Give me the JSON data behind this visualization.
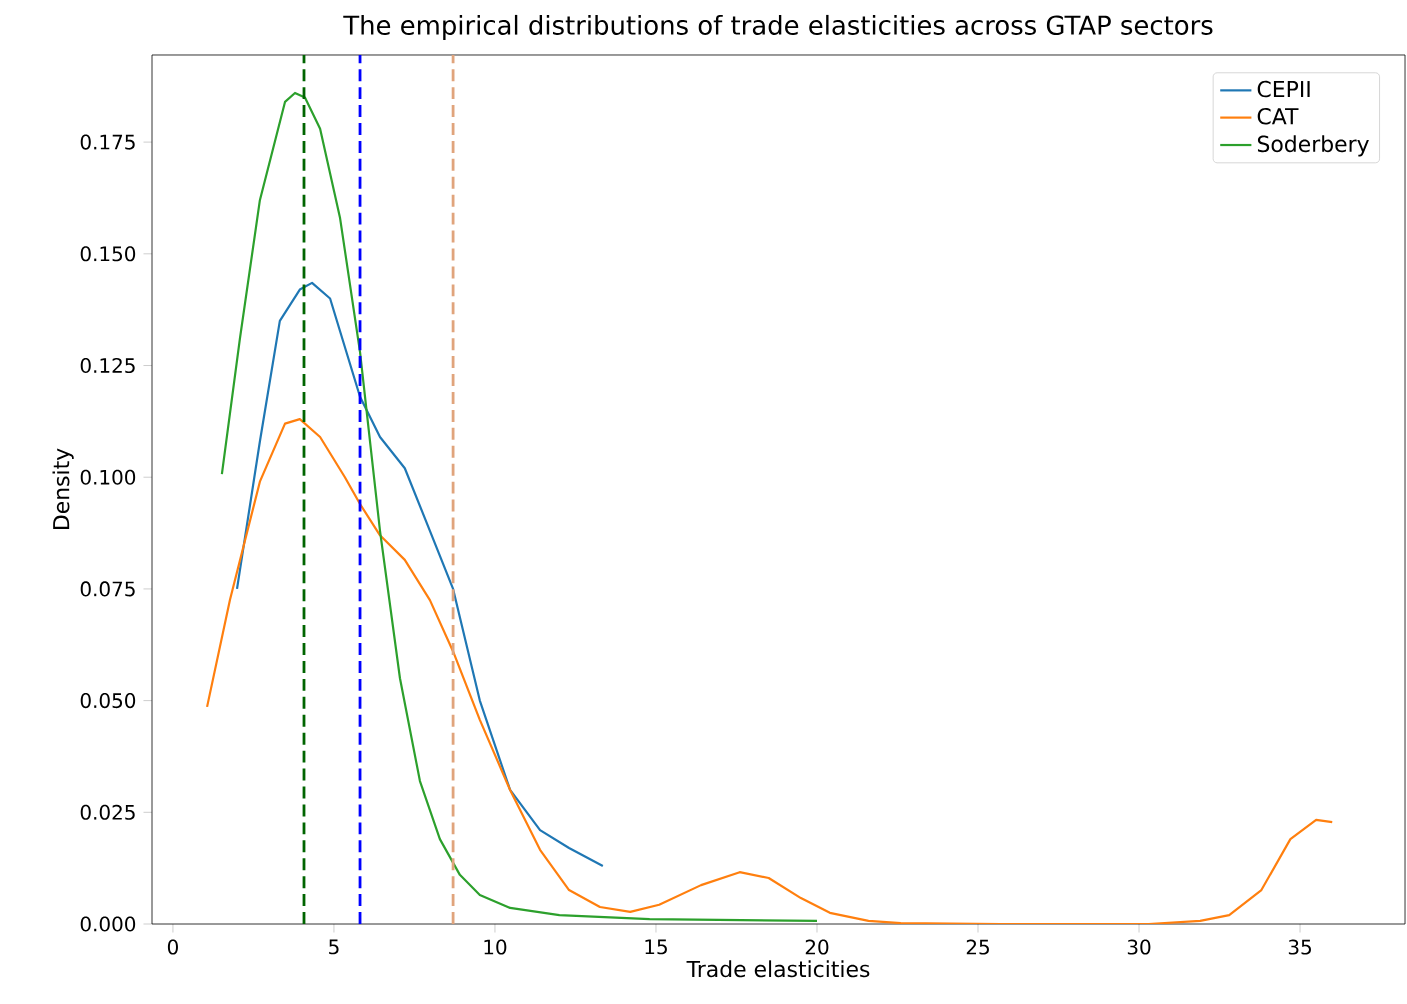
{
  "chart_data": {
    "type": "line",
    "title": "The empirical distributions of trade elasticities across GTAP sectors",
    "xlabel": "Trade elasticities",
    "ylabel": "Density",
    "series": [
      {
        "name": "CEPII",
        "color": "#1f77b4",
        "x": [
          1.99,
          2.7,
          3.32,
          3.94,
          4.32,
          4.88,
          5.81,
          6.43,
          7.2,
          7.98,
          8.7,
          9.53,
          10.47,
          11.4,
          12.3,
          13.35
        ],
        "values": [
          0.075,
          0.108,
          0.135,
          0.142,
          0.1435,
          0.14,
          0.118,
          0.109,
          0.102,
          0.088,
          0.075,
          0.05,
          0.03,
          0.021,
          0.017,
          0.013
        ]
      },
      {
        "name": "CAT",
        "color": "#ff7f0e",
        "x": [
          1.06,
          1.77,
          2.7,
          3.48,
          3.94,
          4.57,
          5.34,
          5.81,
          6.43,
          7.2,
          7.98,
          8.7,
          9.53,
          10.47,
          11.4,
          12.3,
          13.26,
          14.2,
          15.1,
          16.4,
          17.6,
          18.5,
          19.5,
          20.4,
          21.6,
          22.6,
          25.7,
          30.3,
          31.9,
          32.8,
          33.8,
          34.7,
          35.5,
          36.0
        ],
        "values": [
          0.0486,
          0.0725,
          0.099,
          0.112,
          0.113,
          0.109,
          0.1,
          0.094,
          0.087,
          0.0815,
          0.0725,
          0.061,
          0.0457,
          0.03,
          0.0166,
          0.0076,
          0.0038,
          0.0027,
          0.0043,
          0.0087,
          0.0116,
          0.0103,
          0.0058,
          0.0025,
          0.0007,
          0.0002,
          0.0,
          0.0,
          0.0007,
          0.002,
          0.0076,
          0.019,
          0.0233,
          0.0228
        ]
      },
      {
        "name": "Soderbery",
        "color": "#2ca02c",
        "x": [
          1.52,
          2.08,
          2.7,
          3.48,
          3.79,
          4.1,
          4.57,
          5.19,
          5.81,
          6.43,
          7.05,
          7.67,
          8.29,
          8.91,
          9.53,
          10.47,
          12.0,
          14.8,
          20.0
        ],
        "values": [
          0.1007,
          0.131,
          0.162,
          0.184,
          0.186,
          0.185,
          0.178,
          0.158,
          0.128,
          0.088,
          0.055,
          0.032,
          0.019,
          0.011,
          0.0065,
          0.0036,
          0.002,
          0.0011,
          0.0007
        ]
      }
    ],
    "xlim": [
      -0.65,
      38.26
    ],
    "ylim": [
      0,
      0.1945
    ],
    "xticks": [
      0,
      5,
      10,
      15,
      20,
      25,
      30,
      35
    ],
    "yticks": [
      {
        "value": 0,
        "label": "0.000"
      },
      {
        "value": 0.025,
        "label": "0.025"
      },
      {
        "value": 0.05,
        "label": "0.050"
      },
      {
        "value": 0.075,
        "label": "0.075"
      },
      {
        "value": 0.1,
        "label": "0.100"
      },
      {
        "value": 0.125,
        "label": "0.125"
      },
      {
        "value": 0.15,
        "label": "0.150"
      },
      {
        "value": 0.175,
        "label": "0.175"
      }
    ],
    "ref_lines": [
      {
        "axis": "x",
        "value": 4.07,
        "color": "#006400",
        "line_style": "dashed"
      },
      {
        "axis": "x",
        "value": 5.81,
        "color": "#0000ff",
        "line_style": "dashed"
      },
      {
        "axis": "x",
        "value": 8.7,
        "color": "#e0a47c",
        "line_style": "dashed"
      }
    ],
    "legend": "top right"
  }
}
